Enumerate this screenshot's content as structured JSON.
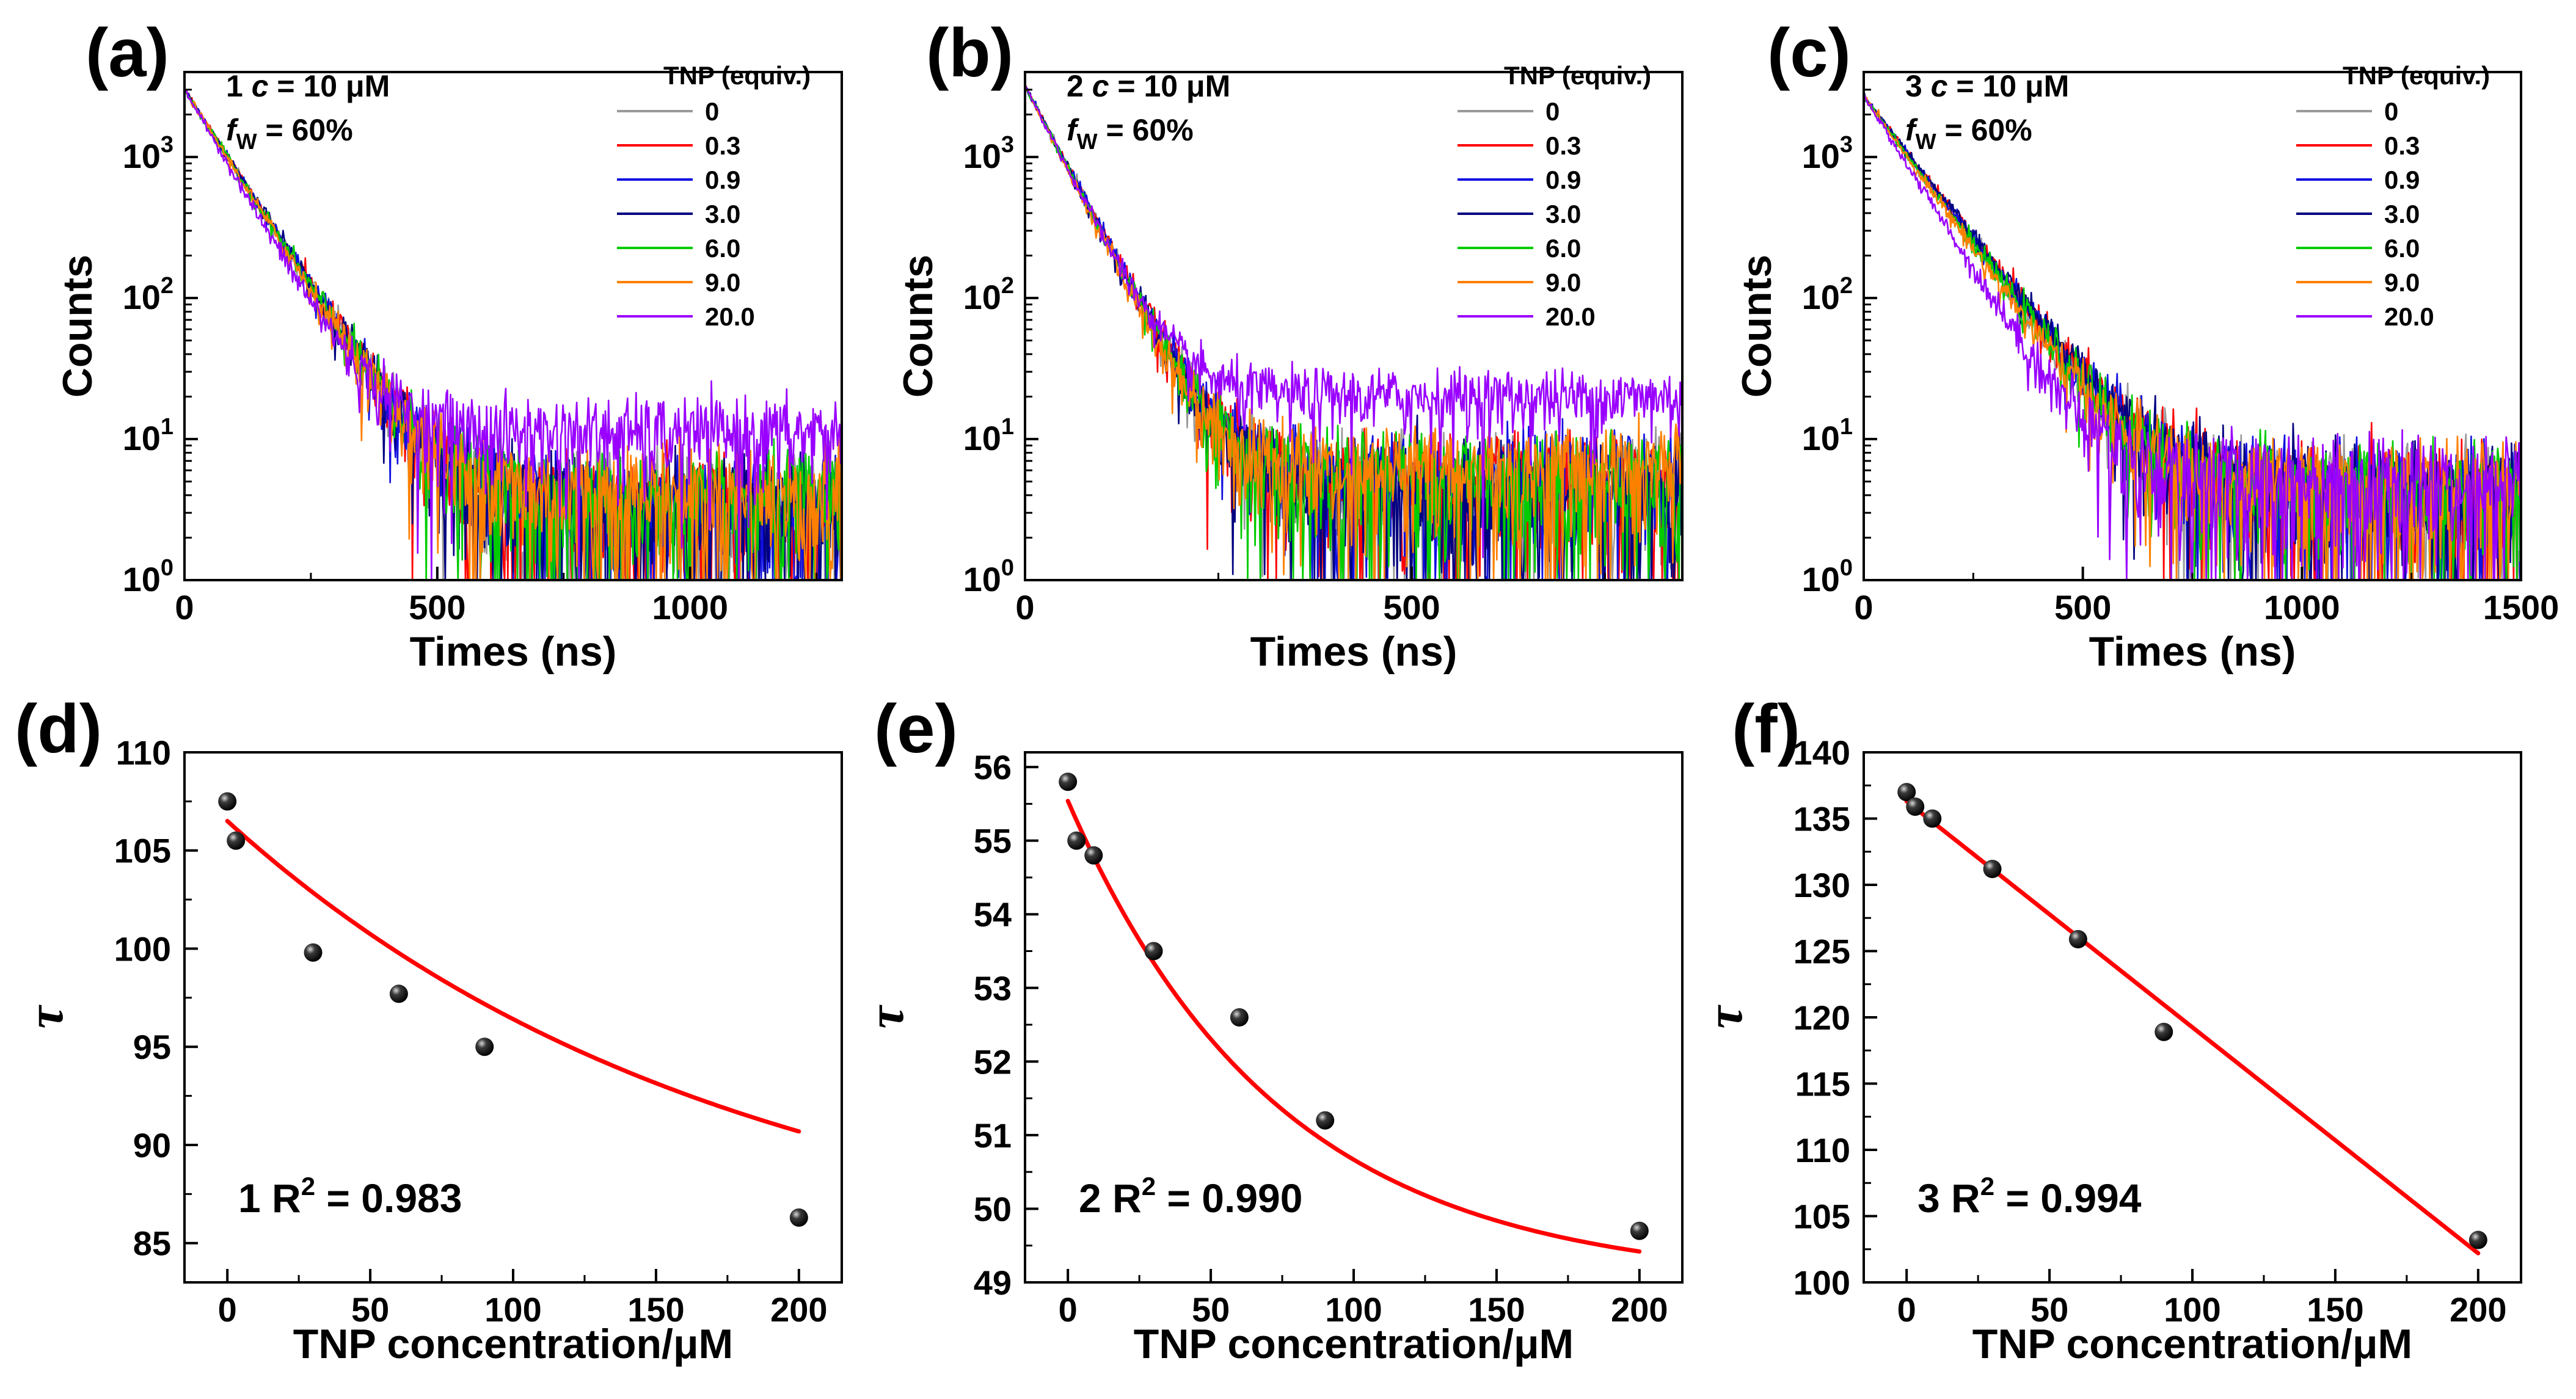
{
  "chart_data": [
    {
      "panel": "(a)",
      "type": "line",
      "scale": "log",
      "xlabel": "Times (ns)",
      "ylabel": "Counts",
      "xlim": [
        0,
        1300
      ],
      "ylim": [
        1,
        4000
      ],
      "xticks": [
        "0",
        "500",
        "1000"
      ],
      "xtick_values": [
        0,
        500,
        1000
      ],
      "yticks": [
        {
          "mantissa": "10",
          "exp": "0"
        },
        {
          "mantissa": "10",
          "exp": "1"
        },
        {
          "mantissa": "10",
          "exp": "2"
        },
        {
          "mantissa": "10",
          "exp": "3"
        }
      ],
      "ytick_values": [
        1,
        10,
        100,
        1000
      ],
      "annotation": {
        "compound": "1",
        "conc": "c",
        "conc_value": "= 10 μM",
        "fw": "f",
        "fw_sub": "W",
        "fw_value": "= 60%"
      },
      "legend": {
        "title": "TNP (equiv.)",
        "position": "top-right"
      },
      "start": 3000,
      "series": [
        {
          "name": "0",
          "color": "#9a9a9a",
          "tau": 78,
          "base": 3
        },
        {
          "name": "0.3",
          "color": "#ff0000",
          "tau": 78,
          "base": 3
        },
        {
          "name": "0.9",
          "color": "#1010e0",
          "tau": 78,
          "base": 3
        },
        {
          "name": "3.0",
          "color": "#000080",
          "tau": 78,
          "base": 3
        },
        {
          "name": "6.0",
          "color": "#00cc00",
          "tau": 77,
          "base": 3.5
        },
        {
          "name": "9.0",
          "color": "#ff8000",
          "tau": 76,
          "base": 4
        },
        {
          "name": "20.0",
          "color": "#9900ff",
          "tau": 70,
          "base": 11
        }
      ]
    },
    {
      "panel": "(b)",
      "type": "line",
      "scale": "log",
      "xlabel": "Times (ns)",
      "ylabel": "Counts",
      "xlim": [
        0,
        850
      ],
      "ylim": [
        1,
        4000
      ],
      "xticks": [
        "0",
        "500"
      ],
      "xtick_values": [
        0,
        500
      ],
      "yticks": [
        {
          "mantissa": "10",
          "exp": "0"
        },
        {
          "mantissa": "10",
          "exp": "1"
        },
        {
          "mantissa": "10",
          "exp": "2"
        },
        {
          "mantissa": "10",
          "exp": "3"
        }
      ],
      "ytick_values": [
        1,
        10,
        100,
        1000
      ],
      "annotation": {
        "compound": "2",
        "conc": "c",
        "conc_value": "= 10 μM",
        "fw": "f",
        "fw_sub": "W",
        "fw_value": "= 60%"
      },
      "legend": {
        "title": "TNP (equiv.)",
        "position": "top-right"
      },
      "start": 3200,
      "series": [
        {
          "name": "0",
          "color": "#9a9a9a",
          "tau": 42,
          "base": 5
        },
        {
          "name": "0.3",
          "color": "#ff0000",
          "tau": 42,
          "base": 5
        },
        {
          "name": "0.9",
          "color": "#1010e0",
          "tau": 42,
          "base": 5
        },
        {
          "name": "3.0",
          "color": "#000080",
          "tau": 41,
          "base": 4
        },
        {
          "name": "6.0",
          "color": "#00cc00",
          "tau": 41,
          "base": 5
        },
        {
          "name": "9.0",
          "color": "#ff8000",
          "tau": 40,
          "base": 6
        },
        {
          "name": "20.0",
          "color": "#9900ff",
          "tau": 40,
          "base": 20
        }
      ]
    },
    {
      "panel": "(c)",
      "type": "line",
      "scale": "log",
      "xlabel": "Times (ns)",
      "ylabel": "Counts",
      "xlim": [
        0,
        1500
      ],
      "ylim": [
        1,
        4000
      ],
      "xticks": [
        "0",
        "500",
        "1000",
        "1500"
      ],
      "xtick_values": [
        0,
        500,
        1000,
        1500
      ],
      "yticks": [
        {
          "mantissa": "10",
          "exp": "0"
        },
        {
          "mantissa": "10",
          "exp": "1"
        },
        {
          "mantissa": "10",
          "exp": "2"
        },
        {
          "mantissa": "10",
          "exp": "3"
        }
      ],
      "ytick_values": [
        1,
        10,
        100,
        1000
      ],
      "annotation": {
        "compound": "3",
        "conc": "c",
        "conc_value": "= 10 μM",
        "fw": "f",
        "fw_sub": "W",
        "fw_value": "= 60%"
      },
      "legend": {
        "title": "TNP (equiv.)",
        "position": "top-right"
      },
      "start": 2700,
      "series": [
        {
          "name": "0",
          "color": "#9a9a9a",
          "tau": 105,
          "base": 4
        },
        {
          "name": "0.3",
          "color": "#ff0000",
          "tau": 107,
          "base": 4
        },
        {
          "name": "0.9",
          "color": "#1010e0",
          "tau": 107,
          "base": 4
        },
        {
          "name": "3.0",
          "color": "#000080",
          "tau": 108,
          "base": 4
        },
        {
          "name": "6.0",
          "color": "#00cc00",
          "tau": 103,
          "base": 4
        },
        {
          "name": "9.0",
          "color": "#ff8000",
          "tau": 100,
          "base": 4
        },
        {
          "name": "20.0",
          "color": "#9900ff",
          "tau": 88,
          "base": 5
        }
      ]
    },
    {
      "panel": "(d)",
      "type": "scatter",
      "xlabel": "TNP concentration/μM",
      "ylabel": "τ",
      "xlim": [
        -15,
        215
      ],
      "ylim": [
        83,
        110
      ],
      "xticks": [
        "0",
        "50",
        "100",
        "150",
        "200"
      ],
      "xtick_values": [
        0,
        50,
        100,
        150,
        200
      ],
      "yticks": [
        "85",
        "90",
        "95",
        "100",
        "105",
        "110"
      ],
      "ytick_values": [
        85,
        90,
        95,
        100,
        105,
        110
      ],
      "points": {
        "x": [
          0,
          3,
          30,
          60,
          90,
          200
        ],
        "y": [
          107.5,
          105.5,
          99.8,
          97.7,
          95.0,
          86.3
        ]
      },
      "fit": {
        "type": "exponential",
        "A": 23.3,
        "t": 176.2,
        "y0": 83.2,
        "color": "#ff0000"
      },
      "compound": "1",
      "r2_label": "R",
      "r2_exp": "2",
      "r2_value": "= 0.983"
    },
    {
      "panel": "(e)",
      "type": "scatter",
      "xlabel": "TNP concentration/μM",
      "ylabel": "τ",
      "xlim": [
        -15,
        215
      ],
      "ylim": [
        49,
        56.2
      ],
      "xticks": [
        "0",
        "50",
        "100",
        "150",
        "200"
      ],
      "xtick_values": [
        0,
        50,
        100,
        150,
        200
      ],
      "yticks": [
        "49",
        "50",
        "51",
        "52",
        "53",
        "54",
        "55",
        "56"
      ],
      "ytick_values": [
        49,
        50,
        51,
        52,
        53,
        54,
        55,
        56
      ],
      "points": {
        "x": [
          0,
          3,
          9,
          30,
          60,
          90,
          200
        ],
        "y": [
          55.8,
          55.0,
          54.8,
          53.5,
          52.6,
          51.2,
          49.7
        ]
      },
      "fit": {
        "type": "exponential",
        "A": 6.55,
        "t": 73.4,
        "y0": 48.99,
        "color": "#ff0000"
      },
      "compound": "2",
      "r2_label": "R",
      "r2_exp": "2",
      "r2_value": "= 0.990"
    },
    {
      "panel": "(f)",
      "type": "scatter",
      "xlabel": "TNP concentration/μM",
      "ylabel": "τ",
      "xlim": [
        -15,
        215
      ],
      "ylim": [
        100,
        140
      ],
      "xticks": [
        "0",
        "50",
        "100",
        "150",
        "200"
      ],
      "xtick_values": [
        0,
        50,
        100,
        150,
        200
      ],
      "yticks": [
        "100",
        "105",
        "110",
        "115",
        "120",
        "125",
        "130",
        "135",
        "140"
      ],
      "ytick_values": [
        100,
        105,
        110,
        115,
        120,
        125,
        130,
        135,
        140
      ],
      "points": {
        "x": [
          0,
          3,
          9,
          30,
          60,
          90,
          200
        ],
        "y": [
          137.0,
          135.9,
          135.0,
          131.2,
          125.9,
          118.9,
          103.2
        ]
      },
      "fit": {
        "type": "linear",
        "slope": -0.1705,
        "intercept": 136.3,
        "color": "#ff0000"
      },
      "compound": "3",
      "r2_label": "R",
      "r2_exp": "2",
      "r2_value": "= 0.994"
    }
  ]
}
